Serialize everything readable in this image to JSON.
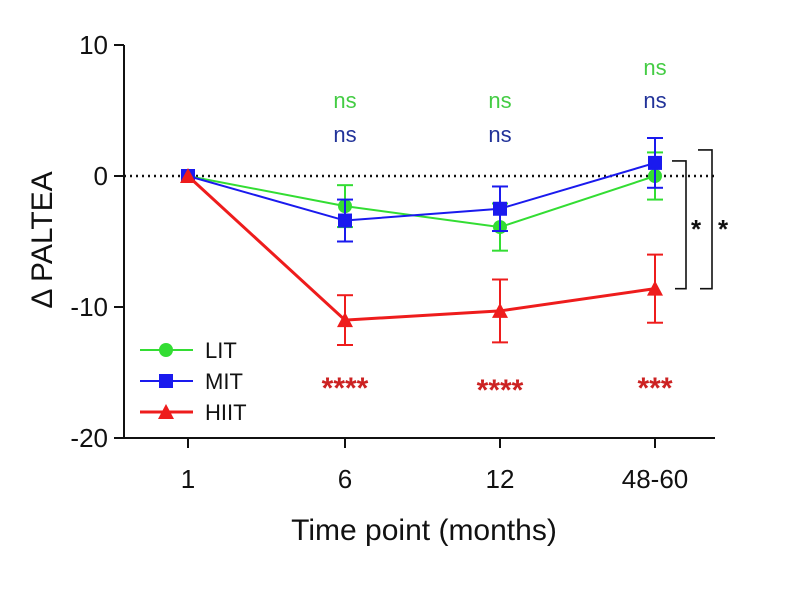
{
  "chart_data": {
    "type": "line",
    "title": "",
    "xlabel": "Time point (months)",
    "ylabel": "Δ PALTEA",
    "categories": [
      "1",
      "6",
      "12",
      "48-60"
    ],
    "ylim": [
      -20,
      10
    ],
    "yticks": [
      10,
      0,
      -10,
      -20
    ],
    "reference_line": 0,
    "grid": false,
    "legend_position": "bottom-left",
    "series": [
      {
        "name": "LIT",
        "color": "#33dd33",
        "marker": "circle",
        "values": [
          0,
          -2.3,
          -3.9,
          0.0
        ],
        "errors": [
          0,
          1.6,
          1.8,
          1.8
        ]
      },
      {
        "name": "MIT",
        "color": "#1a1aee",
        "marker": "square",
        "values": [
          0,
          -3.4,
          -2.5,
          1.0
        ],
        "errors": [
          0,
          1.6,
          1.7,
          1.9
        ]
      },
      {
        "name": "HIIT",
        "color": "#ee1c1c",
        "marker": "triangle",
        "values": [
          0,
          -11.0,
          -10.3,
          -8.6
        ],
        "errors": [
          0,
          1.9,
          2.4,
          2.6
        ]
      }
    ],
    "significance": {
      "lit": {
        "color": "#44cc44",
        "labels": [
          "",
          "ns",
          "ns",
          "ns"
        ]
      },
      "mit": {
        "color": "#223399",
        "labels": [
          "",
          "ns",
          "ns",
          "ns"
        ]
      },
      "hiit": {
        "color": "#cc2222",
        "labels": [
          "",
          "****",
          "****",
          "***"
        ]
      }
    },
    "brackets": [
      "*",
      "*"
    ]
  }
}
